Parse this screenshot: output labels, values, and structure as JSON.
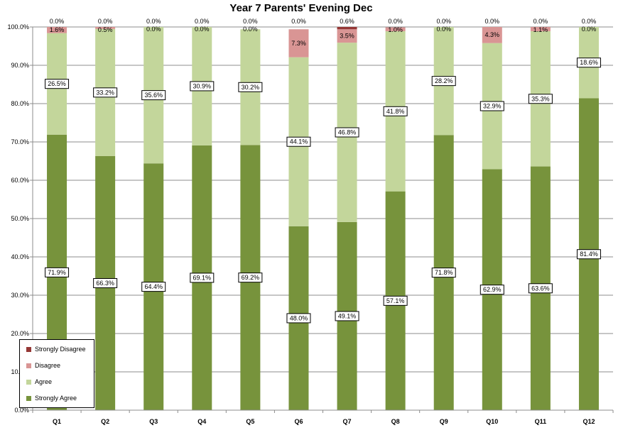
{
  "chart_data": {
    "type": "bar",
    "stacked": true,
    "title": "Year 7 Parents' Evening Dec",
    "categories": [
      "Q1",
      "Q2",
      "Q3",
      "Q4",
      "Q5",
      "Q6",
      "Q7",
      "Q8",
      "Q9",
      "Q10",
      "Q11",
      "Q12"
    ],
    "y_ticks": [
      "0.0%",
      "10.0%",
      "20.0%",
      "30.0%",
      "40.0%",
      "50.0%",
      "60.0%",
      "70.0%",
      "80.0%",
      "90.0%",
      "100.0%"
    ],
    "ylim": [
      0,
      100
    ],
    "grid": true,
    "legend_position": "bottom-left",
    "series": [
      {
        "name": "Strongly Agree",
        "color": "#77933c",
        "values": [
          71.9,
          66.3,
          64.4,
          69.1,
          69.2,
          48.0,
          49.1,
          57.1,
          71.8,
          62.9,
          63.6,
          81.4
        ],
        "labels": [
          "71.9%",
          "66.3%",
          "64.4%",
          "69.1%",
          "69.2%",
          "48.0%",
          "49.1%",
          "57.1%",
          "71.8%",
          "62.9%",
          "63.6%",
          "81.4%"
        ]
      },
      {
        "name": "Agree",
        "color": "#c3d69b",
        "values": [
          26.5,
          33.2,
          35.6,
          30.9,
          30.2,
          44.1,
          46.8,
          41.8,
          28.2,
          32.9,
          35.3,
          18.6
        ],
        "labels": [
          "26.5%",
          "33.2%",
          "35.6%",
          "30.9%",
          "30.2%",
          "44.1%",
          "46.8%",
          "41.8%",
          "28.2%",
          "32.9%",
          "35.3%",
          "18.6%"
        ]
      },
      {
        "name": "Disagree",
        "color": "#d99594",
        "values": [
          1.6,
          0.5,
          0.0,
          0.0,
          0.0,
          7.3,
          3.5,
          1.0,
          0.0,
          4.3,
          1.1,
          0.0
        ],
        "labels": [
          "1.6%",
          "0.5%",
          "0.0%",
          "0.0%",
          "0.0%",
          "7.3%",
          "3.5%",
          "1.0%",
          "0.0%",
          "4.3%",
          "1.1%",
          "0.0%"
        ]
      },
      {
        "name": "Strongly Disagree",
        "color": "#953735",
        "values": [
          0.0,
          0.0,
          0.0,
          0.0,
          0.0,
          0.0,
          0.6,
          0.0,
          0.0,
          0.0,
          0.0,
          0.0
        ],
        "labels": [
          "0.0%",
          "0.0%",
          "0.0%",
          "0.0%",
          "0.0%",
          "0.0%",
          "0.6%",
          "0.0%",
          "0.0%",
          "0.0%",
          "0.0%",
          "0.0%"
        ]
      }
    ]
  },
  "legend": {
    "items": [
      {
        "label": "Strongly Disagree",
        "color": "#953735"
      },
      {
        "label": "Disagree",
        "color": "#d99594"
      },
      {
        "label": "Agree",
        "color": "#c3d69b"
      },
      {
        "label": "Strongly Agree",
        "color": "#77933c"
      }
    ]
  }
}
